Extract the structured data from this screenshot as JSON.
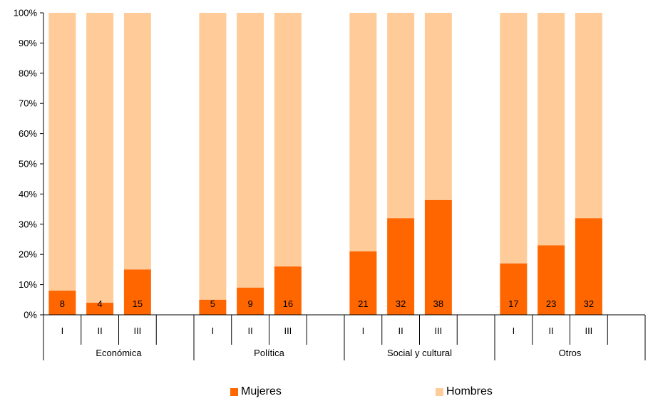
{
  "chart_data": {
    "type": "bar",
    "stacked": "percent",
    "y_ticks": [
      "0%",
      "10%",
      "20%",
      "30%",
      "40%",
      "50%",
      "60%",
      "70%",
      "80%",
      "90%",
      "100%"
    ],
    "ylim": [
      0,
      100
    ],
    "groups": [
      {
        "label": "Económica",
        "subcategories": [
          "I",
          "II",
          "III"
        ]
      },
      {
        "label": "Política",
        "subcategories": [
          "I",
          "II",
          "III"
        ]
      },
      {
        "label": "Social y cultural",
        "subcategories": [
          "I",
          "II",
          "III"
        ]
      },
      {
        "label": "Otros",
        "subcategories": [
          "I",
          "II",
          "III"
        ]
      }
    ],
    "series": [
      {
        "name": "Mujeres",
        "color": "#ff6600",
        "values": [
          8,
          4,
          15,
          5,
          9,
          16,
          21,
          32,
          38,
          17,
          23,
          32
        ],
        "labels": [
          "8",
          "4",
          "15",
          "5",
          "9",
          "16",
          "21",
          "32",
          "38",
          "17",
          "23",
          "32"
        ]
      },
      {
        "name": "Hombres",
        "color": "#ffcc99",
        "values": [
          92,
          96,
          85,
          95,
          91,
          84,
          79,
          68,
          62,
          83,
          77,
          68
        ]
      }
    ],
    "grid": false,
    "legend_position": "bottom"
  }
}
